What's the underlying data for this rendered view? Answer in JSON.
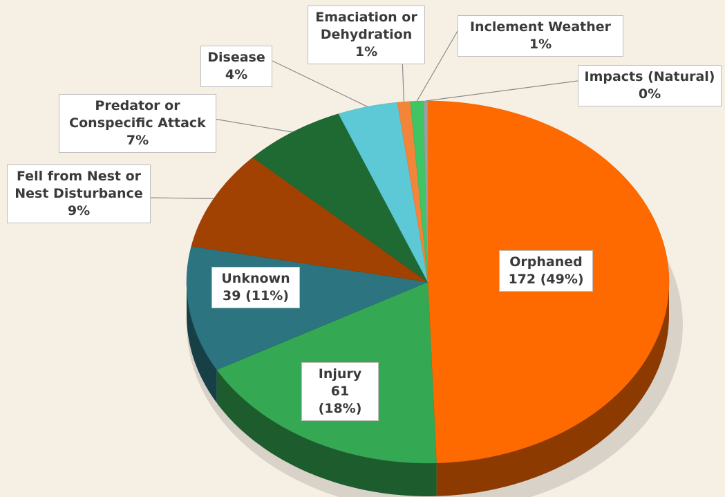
{
  "chart_data": {
    "type": "pie",
    "categories": [
      "Orphaned",
      "Injury",
      "Unknown",
      "Fell from Nest or Nest Disturbance",
      "Predator or Conspecific Attack",
      "Disease",
      "Emaciation or Dehydration",
      "Inclement Weather",
      "Impacts (Natural)"
    ],
    "values": [
      172,
      61,
      39,
      31,
      24,
      14,
      3,
      3,
      1
    ],
    "value_labels": [
      "172 (49%)",
      "61 (18%)",
      "39 (11%)",
      "9%",
      "7%",
      "4%",
      "1%",
      "1%",
      "0%"
    ],
    "colors": [
      "#ff6a00",
      "#35a853",
      "#2b7480",
      "#a14102",
      "#1f6a33",
      "#5dc9d6",
      "#f2853a",
      "#3fc563",
      "#9aa0a0"
    ]
  }
}
